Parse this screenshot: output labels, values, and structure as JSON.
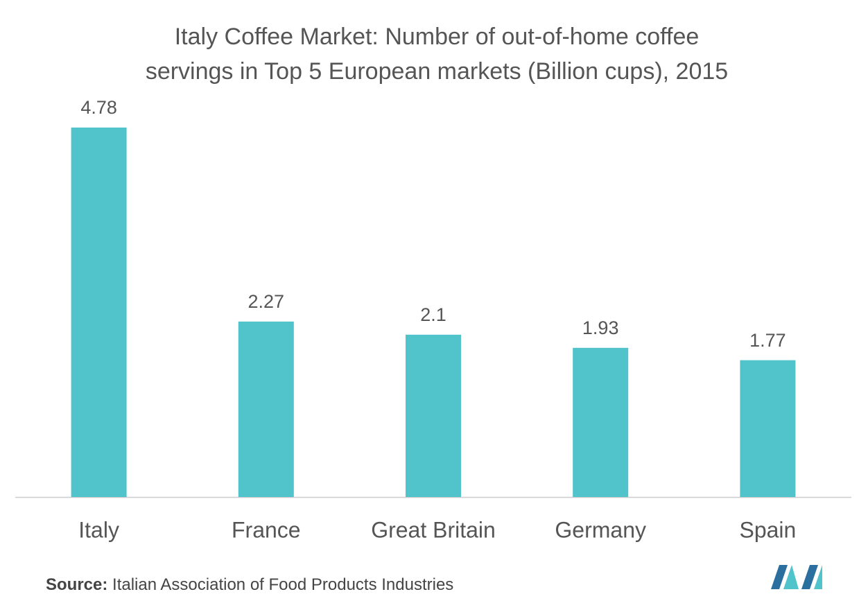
{
  "chart_data": {
    "type": "bar",
    "title": [
      "Italy Coffee Market: Number of out-of-home coffee",
      "servings in Top 5 European markets (Billion cups), 2015"
    ],
    "categories": [
      "Italy",
      "France",
      "Great Britain",
      "Germany",
      "Spain"
    ],
    "values": [
      4.78,
      2.27,
      2.1,
      1.93,
      1.77
    ],
    "color": "#50c4ca",
    "source_label": "Source:",
    "source": "Italian Association of Food Products Industries"
  }
}
